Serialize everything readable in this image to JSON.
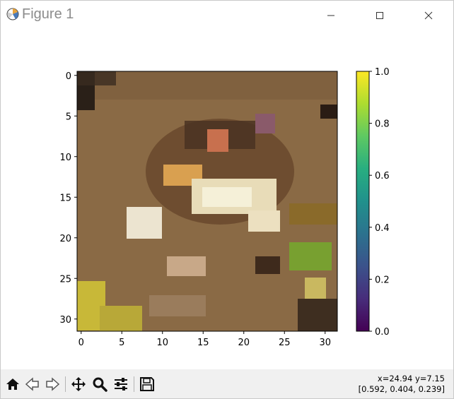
{
  "window": {
    "title": "Figure 1",
    "colors": {
      "title_text": "#8c8c8c",
      "toolbar_bg": "#f0f0f0"
    }
  },
  "toolbar": {
    "buttons": [
      {
        "name": "home",
        "icon": "home-icon"
      },
      {
        "name": "back",
        "icon": "back-arrow-icon"
      },
      {
        "name": "forward",
        "icon": "forward-arrow-icon"
      },
      {
        "name": "pan",
        "icon": "move-icon"
      },
      {
        "name": "zoom",
        "icon": "magnifier-icon"
      },
      {
        "name": "configure-subplots",
        "icon": "sliders-icon"
      },
      {
        "name": "save",
        "icon": "floppy-disk-icon"
      }
    ]
  },
  "status": {
    "coords": "x=24.94 y=7.15",
    "pixel_value": "[0.592, 0.404, 0.239]"
  },
  "chart_data": {
    "type": "heatmap",
    "title": "",
    "xlabel": "",
    "ylabel": "",
    "image_size": [
      32,
      32
    ],
    "x_ticks": [
      0,
      5,
      10,
      15,
      20,
      25,
      30
    ],
    "y_ticks": [
      0,
      5,
      10,
      15,
      20,
      25,
      30
    ],
    "x_tick_labels": [
      "0",
      "5",
      "10",
      "15",
      "20",
      "25",
      "30"
    ],
    "y_tick_labels": [
      "0",
      "5",
      "10",
      "15",
      "20",
      "25",
      "30"
    ],
    "xlim": [
      -0.5,
      31.5
    ],
    "ylim": [
      31.5,
      -0.5
    ],
    "colorbar": {
      "colormap": "viridis",
      "range": [
        0.0,
        1.0
      ],
      "ticks": [
        0.0,
        0.2,
        0.4,
        0.6,
        0.8,
        1.0
      ],
      "tick_labels": [
        "0.0",
        "0.2",
        "0.4",
        "0.6",
        "0.8",
        "1.0"
      ]
    },
    "features": [
      {
        "name": "background",
        "color": "#8a6a45"
      },
      {
        "name": "frog-body",
        "color": "#6a4a2e"
      },
      {
        "name": "frog-highlight",
        "color": "#f2eed8"
      },
      {
        "name": "frog-eye",
        "color": "#d07a58"
      },
      {
        "name": "purple-spot",
        "color": "#9a6a7a"
      },
      {
        "name": "green-foliage",
        "color": "#7a9a30"
      },
      {
        "name": "yellow-leaf",
        "color": "#c8b838"
      },
      {
        "name": "dark-corner",
        "color": "#2a2018"
      }
    ]
  }
}
